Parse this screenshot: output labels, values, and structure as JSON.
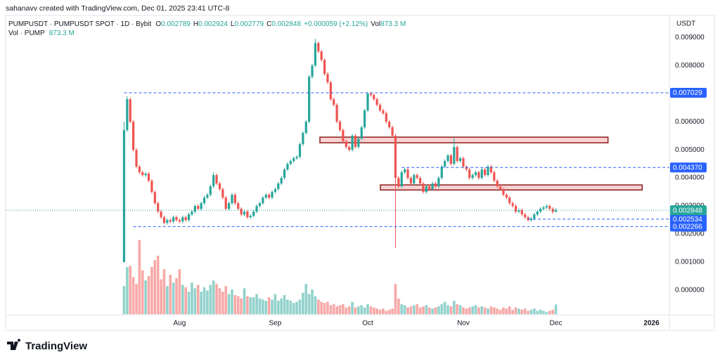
{
  "header": {
    "credit": "sahanavv created with TradingView.com, Dec 01, 2025 23:41 UTC-8",
    "symbol": "PUMPUSDT · PUMPUSDT SPOT · 1D · Bybit",
    "ohlc": [
      {
        "label": "O",
        "value": "0.002789"
      },
      {
        "label": "H",
        "value": "0.002924"
      },
      {
        "label": "L",
        "value": "0.002779"
      },
      {
        "label": "C",
        "value": "0.002848"
      }
    ],
    "change": "+0.000059 (+2.12%)",
    "vol_label": "Vol",
    "vol_value": "873.3 M",
    "vol_title": "Vol · PUMP",
    "currency": "USDT"
  },
  "footer": {
    "logo": "TradingView"
  },
  "chart_data": {
    "type": "candlestick",
    "up_color": "#26a69a",
    "down_color": "#ef5350",
    "line_color": "#2962ff",
    "xlim": [
      -38.4,
      176.8
    ],
    "xticks": [
      {
        "value": 18,
        "label": "Aug"
      },
      {
        "value": 49,
        "label": "Sep"
      },
      {
        "value": 79,
        "label": "Oct"
      },
      {
        "value": 110,
        "label": "Nov"
      },
      {
        "value": 140,
        "label": "Dec"
      },
      {
        "value": 171,
        "label": "2026"
      }
    ],
    "ylim": [
      -0.00085,
      0.00933
    ],
    "yticks": [
      {
        "value": 0,
        "label": "0.000000"
      },
      {
        "value": 0.001,
        "label": "0.001000"
      },
      {
        "value": 0.002,
        "label": "0.002000"
      },
      {
        "value": 0.003,
        "label": "0.003000"
      },
      {
        "value": 0.004,
        "label": "0.004000"
      },
      {
        "value": 0.005,
        "label": "0.005000"
      },
      {
        "value": 0.006,
        "label": "0.006000"
      },
      {
        "value": 0.007,
        "label": "0.007000"
      },
      {
        "value": 0.008,
        "label": "0.008000"
      },
      {
        "value": 0.009,
        "label": "0.009000"
      }
    ],
    "hlines": [
      {
        "value": 0.007029,
        "label": "0.007029",
        "from": 0
      },
      {
        "value": 0.00437,
        "label": "0.004370",
        "from": 90
      },
      {
        "value": 0.002534,
        "label": "0.002534",
        "from": 131
      },
      {
        "value": 0.002266,
        "label": "0.002266",
        "from": 3
      }
    ],
    "zones": [
      {
        "x": [
          63.5,
          156.9
        ],
        "y": [
          0.00525,
          0.00545
        ]
      },
      {
        "x": [
          83.1,
          168
        ],
        "y": [
          0.00357,
          0.00375
        ]
      }
    ],
    "ohlc": [
      [
        0.001,
        0.006,
        0.001,
        0.0057
      ],
      [
        0.0057,
        0.0069,
        0.00564,
        0.0068
      ],
      [
        0.0068,
        0.00686,
        0.00594,
        0.006
      ],
      [
        0.006,
        0.00606,
        0.00494,
        0.005
      ],
      [
        0.005,
        0.00506,
        0.00434,
        0.0044
      ],
      [
        0.0044,
        0.00446,
        0.00414,
        0.0042
      ],
      [
        0.0042,
        0.00426,
        0.00404,
        0.0041
      ],
      [
        0.0041,
        0.00421,
        0.00404,
        0.00415
      ],
      [
        0.00415,
        0.00421,
        0.00384,
        0.0039
      ],
      [
        0.0039,
        0.00396,
        0.00344,
        0.0035
      ],
      [
        0.0035,
        0.00356,
        0.00304,
        0.0031
      ],
      [
        0.0031,
        0.00316,
        0.00274,
        0.0028
      ],
      [
        0.0028,
        0.00286,
        0.00254,
        0.0026
      ],
      [
        0.0026,
        0.00266,
        0.00234,
        0.0024
      ],
      [
        0.0024,
        0.00256,
        0.00234,
        0.0025
      ],
      [
        0.0025,
        0.00256,
        0.00239,
        0.00245
      ],
      [
        0.00245,
        0.00266,
        0.00239,
        0.0026
      ],
      [
        0.0026,
        0.00266,
        0.00244,
        0.0025
      ],
      [
        0.0025,
        0.00256,
        0.00239,
        0.00245
      ],
      [
        0.00245,
        0.00266,
        0.00239,
        0.0026
      ],
      [
        0.0026,
        0.00266,
        0.00244,
        0.0025
      ],
      [
        0.0025,
        0.00276,
        0.00244,
        0.0027
      ],
      [
        0.0027,
        0.00286,
        0.00264,
        0.0028
      ],
      [
        0.0028,
        0.00306,
        0.00274,
        0.003
      ],
      [
        0.003,
        0.00306,
        0.00284,
        0.0029
      ],
      [
        0.0029,
        0.00316,
        0.00284,
        0.0031
      ],
      [
        0.0031,
        0.00336,
        0.00304,
        0.0033
      ],
      [
        0.0033,
        0.00346,
        0.00324,
        0.0034
      ],
      [
        0.0034,
        0.00376,
        0.00334,
        0.0037
      ],
      [
        0.0037,
        0.0042,
        0.00364,
        0.0041
      ],
      [
        0.0041,
        0.00416,
        0.00374,
        0.0038
      ],
      [
        0.0038,
        0.00386,
        0.00354,
        0.0036
      ],
      [
        0.0036,
        0.00366,
        0.00324,
        0.0033
      ],
      [
        0.0033,
        0.00336,
        0.00284,
        0.0029
      ],
      [
        0.0029,
        0.00316,
        0.00284,
        0.0031
      ],
      [
        0.0031,
        0.00346,
        0.00304,
        0.0034
      ],
      [
        0.0034,
        0.00346,
        0.00304,
        0.0031
      ],
      [
        0.0031,
        0.00316,
        0.00284,
        0.0029
      ],
      [
        0.0029,
        0.00296,
        0.00264,
        0.0027
      ],
      [
        0.0027,
        0.00286,
        0.00264,
        0.0028
      ],
      [
        0.0028,
        0.00286,
        0.00254,
        0.0026
      ],
      [
        0.0026,
        0.00271,
        0.00254,
        0.00265
      ],
      [
        0.00265,
        0.00286,
        0.00259,
        0.0028
      ],
      [
        0.0028,
        0.00306,
        0.00274,
        0.003
      ],
      [
        0.003,
        0.00316,
        0.00294,
        0.0031
      ],
      [
        0.0031,
        0.00336,
        0.00304,
        0.0033
      ],
      [
        0.0033,
        0.00346,
        0.00324,
        0.0034
      ],
      [
        0.0034,
        0.00346,
        0.00324,
        0.0033
      ],
      [
        0.0033,
        0.00356,
        0.00324,
        0.0035
      ],
      [
        0.0035,
        0.00366,
        0.00344,
        0.0036
      ],
      [
        0.0036,
        0.00386,
        0.00354,
        0.0038
      ],
      [
        0.0038,
        0.00406,
        0.00374,
        0.004
      ],
      [
        0.004,
        0.00436,
        0.00394,
        0.0043
      ],
      [
        0.0043,
        0.00456,
        0.00424,
        0.0045
      ],
      [
        0.0045,
        0.00466,
        0.00444,
        0.0046
      ],
      [
        0.0046,
        0.00476,
        0.00454,
        0.0047
      ],
      [
        0.0047,
        0.00481,
        0.00464,
        0.00475
      ],
      [
        0.00475,
        0.00526,
        0.00469,
        0.0052
      ],
      [
        0.0052,
        0.00566,
        0.00514,
        0.0056
      ],
      [
        0.0056,
        0.00606,
        0.00554,
        0.006
      ],
      [
        0.006,
        0.00766,
        0.00594,
        0.0076
      ],
      [
        0.0076,
        0.00806,
        0.00754,
        0.008
      ],
      [
        0.008,
        0.00895,
        0.00794,
        0.0088
      ],
      [
        0.0088,
        0.00886,
        0.00844,
        0.0085
      ],
      [
        0.0085,
        0.00856,
        0.00814,
        0.0082
      ],
      [
        0.0082,
        0.00826,
        0.00764,
        0.0077
      ],
      [
        0.0077,
        0.00776,
        0.00734,
        0.0074
      ],
      [
        0.0074,
        0.00746,
        0.00674,
        0.0068
      ],
      [
        0.0068,
        0.00686,
        0.00654,
        0.0066
      ],
      [
        0.0066,
        0.00666,
        0.00594,
        0.006
      ],
      [
        0.006,
        0.00606,
        0.00564,
        0.0057
      ],
      [
        0.0057,
        0.00576,
        0.00524,
        0.0053
      ],
      [
        0.0053,
        0.00536,
        0.00504,
        0.0051
      ],
      [
        0.0051,
        0.00516,
        0.00494,
        0.005
      ],
      [
        0.005,
        0.00556,
        0.00494,
        0.0055
      ],
      [
        0.0055,
        0.00556,
        0.00504,
        0.0051
      ],
      [
        0.0051,
        0.00546,
        0.00504,
        0.0054
      ],
      [
        0.0054,
        0.00586,
        0.00534,
        0.0058
      ],
      [
        0.0058,
        0.00646,
        0.00574,
        0.0064
      ],
      [
        0.0064,
        0.00706,
        0.00634,
        0.007
      ],
      [
        0.007,
        0.00706,
        0.00689,
        0.00695
      ],
      [
        0.00695,
        0.00701,
        0.00674,
        0.0068
      ],
      [
        0.0068,
        0.00686,
        0.00654,
        0.0066
      ],
      [
        0.0066,
        0.00666,
        0.00634,
        0.0064
      ],
      [
        0.0064,
        0.00646,
        0.00624,
        0.0063
      ],
      [
        0.0063,
        0.00636,
        0.00594,
        0.006
      ],
      [
        0.006,
        0.00606,
        0.00574,
        0.0058
      ],
      [
        0.0058,
        0.00586,
        0.00544,
        0.0055
      ],
      [
        0.0055,
        0.00556,
        0.0015,
        0.004
      ],
      [
        0.004,
        0.00406,
        0.00364,
        0.0037
      ],
      [
        0.0037,
        0.00426,
        0.00364,
        0.0042
      ],
      [
        0.0042,
        0.00436,
        0.00414,
        0.0043
      ],
      [
        0.0043,
        0.00436,
        0.00394,
        0.004
      ],
      [
        0.004,
        0.00406,
        0.00374,
        0.0038
      ],
      [
        0.0038,
        0.00416,
        0.00374,
        0.0041
      ],
      [
        0.0041,
        0.00416,
        0.00394,
        0.004
      ],
      [
        0.004,
        0.00406,
        0.00374,
        0.0038
      ],
      [
        0.0038,
        0.00386,
        0.00344,
        0.0035
      ],
      [
        0.0035,
        0.00376,
        0.00344,
        0.0037
      ],
      [
        0.0037,
        0.00376,
        0.00354,
        0.0036
      ],
      [
        0.0036,
        0.00386,
        0.00354,
        0.0038
      ],
      [
        0.0038,
        0.00386,
        0.00364,
        0.0037
      ],
      [
        0.0037,
        0.00406,
        0.00364,
        0.004
      ],
      [
        0.004,
        0.00446,
        0.00394,
        0.0044
      ],
      [
        0.0044,
        0.00466,
        0.00434,
        0.0046
      ],
      [
        0.0046,
        0.00486,
        0.00454,
        0.0048
      ],
      [
        0.0048,
        0.00486,
        0.00444,
        0.0045
      ],
      [
        0.0045,
        0.0054,
        0.00444,
        0.0051
      ],
      [
        0.0051,
        0.00516,
        0.00454,
        0.0046
      ],
      [
        0.0046,
        0.00476,
        0.00454,
        0.0047
      ],
      [
        0.0047,
        0.00476,
        0.00434,
        0.0044
      ],
      [
        0.0044,
        0.00446,
        0.00424,
        0.0043
      ],
      [
        0.0043,
        0.00436,
        0.00394,
        0.004
      ],
      [
        0.004,
        0.00416,
        0.00394,
        0.0041
      ],
      [
        0.0041,
        0.00426,
        0.00404,
        0.0042
      ],
      [
        0.0042,
        0.00426,
        0.00394,
        0.004
      ],
      [
        0.004,
        0.00436,
        0.00394,
        0.0043
      ],
      [
        0.0043,
        0.00436,
        0.00404,
        0.0041
      ],
      [
        0.0041,
        0.00446,
        0.00404,
        0.0044
      ],
      [
        0.0044,
        0.00446,
        0.00414,
        0.0042
      ],
      [
        0.0042,
        0.00426,
        0.00384,
        0.0039
      ],
      [
        0.0039,
        0.00396,
        0.00364,
        0.0037
      ],
      [
        0.0037,
        0.00376,
        0.00354,
        0.0036
      ],
      [
        0.0036,
        0.00366,
        0.00334,
        0.0034
      ],
      [
        0.0034,
        0.00346,
        0.00324,
        0.0033
      ],
      [
        0.0033,
        0.00336,
        0.00304,
        0.0031
      ],
      [
        0.0031,
        0.00316,
        0.00294,
        0.003
      ],
      [
        0.003,
        0.00306,
        0.00274,
        0.0028
      ],
      [
        0.0028,
        0.00291,
        0.00274,
        0.00285
      ],
      [
        0.00285,
        0.00291,
        0.00264,
        0.0027
      ],
      [
        0.0027,
        0.00276,
        0.00254,
        0.0026
      ],
      [
        0.0026,
        0.00266,
        0.00244,
        0.0025
      ],
      [
        0.0025,
        0.00261,
        0.00244,
        0.00255
      ],
      [
        0.00255,
        0.00276,
        0.00249,
        0.0027
      ],
      [
        0.0027,
        0.00286,
        0.00264,
        0.0028
      ],
      [
        0.0028,
        0.00296,
        0.00274,
        0.0029
      ],
      [
        0.0029,
        0.00301,
        0.00284,
        0.00295
      ],
      [
        0.00295,
        0.00306,
        0.00289,
        0.003
      ],
      [
        0.003,
        0.00306,
        0.00284,
        0.0029
      ],
      [
        0.0029,
        0.00296,
        0.00273,
        0.002789
      ],
      [
        0.002789,
        0.002924,
        0.002779,
        0.002848
      ]
    ],
    "volume": [
      2500,
      4200,
      4300,
      3300,
      2700,
      6600,
      3900,
      3000,
      3400,
      4200,
      4800,
      5200,
      3100,
      4000,
      2500,
      3500,
      2800,
      3200,
      4000,
      2600,
      2400,
      2000,
      2800,
      2300,
      2600,
      2000,
      2400,
      2100,
      2600,
      3000,
      2700,
      2300,
      2000,
      2500,
      1800,
      2200,
      1700,
      1600,
      1400,
      2300,
      1600,
      1500,
      1500,
      1800,
      1400,
      1300,
      1200,
      1500,
      1300,
      1800,
      1200,
      1400,
      1700,
      1300,
      1200,
      1000,
      1100,
      1300,
      1900,
      2700,
      1800,
      2200,
      1600,
      1300,
      1100,
      1000,
      1100,
      800,
      900,
      700,
      800,
      900,
      600,
      700,
      1100,
      600,
      700,
      800,
      600,
      900,
      700,
      600,
      500,
      400,
      500,
      300,
      400,
      500,
      2700,
      1400,
      900,
      800,
      600,
      700,
      800,
      900,
      600,
      700,
      800,
      600,
      500,
      600,
      700,
      900,
      1100,
      800,
      700,
      1200,
      900,
      800,
      600,
      500,
      600,
      700,
      800,
      600,
      700,
      600,
      500,
      700,
      600,
      500,
      400,
      600,
      500,
      700,
      400,
      600,
      500,
      400,
      500,
      300,
      400,
      500,
      300,
      400,
      300,
      200,
      300,
      400,
      873.3
    ]
  }
}
